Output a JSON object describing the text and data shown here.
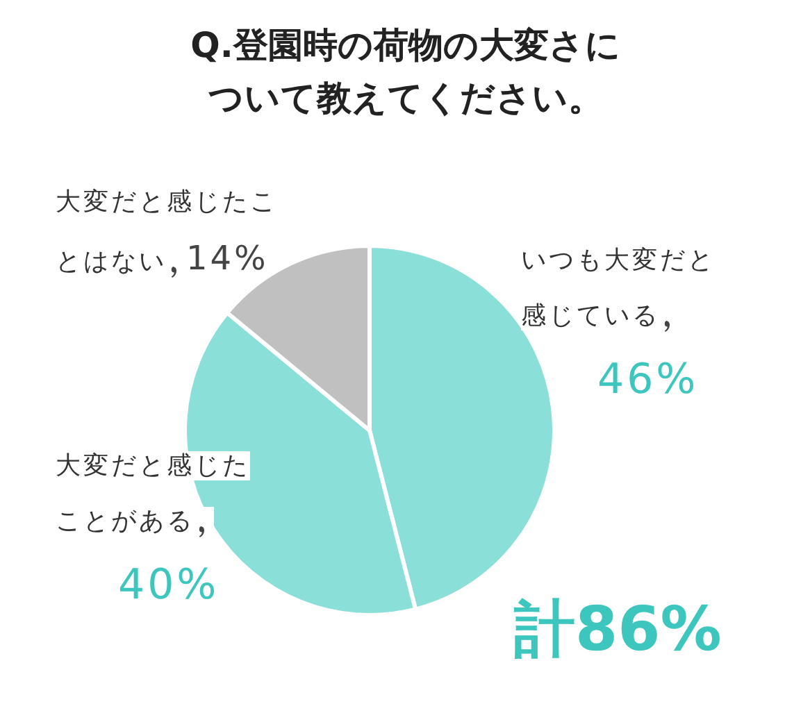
{
  "chart_data": {
    "type": "pie",
    "title": "Q.登園時の荷物の大変さについて教えてください。",
    "categories": [
      "いつも大変だと感じている",
      "大変だと感じたことがある",
      "大変だと感じたことはない"
    ],
    "values": [
      46,
      40,
      14
    ],
    "value_labels": [
      "46%",
      "40%",
      "14%"
    ],
    "colors": [
      "#8adfd8",
      "#8adfd8",
      "#c0c0c0"
    ],
    "annotations": [
      "計86%"
    ]
  }
}
